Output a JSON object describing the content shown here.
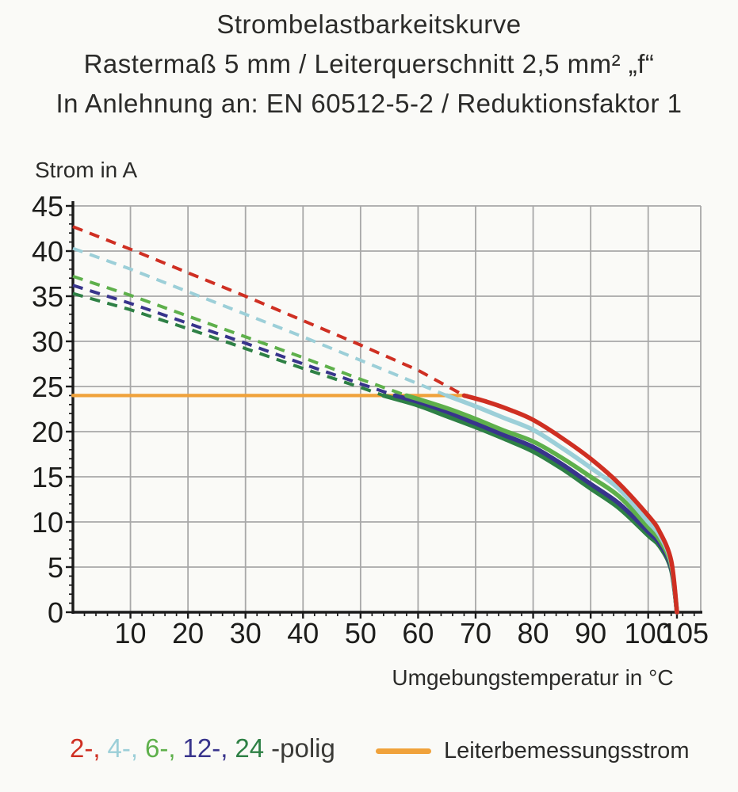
{
  "header": {
    "line1": "Strombelastbarkeitskurve",
    "line2": "Rastermaß 5 mm / Leiterquerschnitt 2,5 mm² „f“",
    "line3": "In Anlehnung an: EN 60512-5-2 / Reduktionsfaktor 1"
  },
  "legend": {
    "pole_tokens": [
      {
        "label": "2-,",
        "color": "#cf2f22"
      },
      {
        "label": "4-,",
        "color": "#9ccfd8"
      },
      {
        "label": "6-,",
        "color": "#5eb04b"
      },
      {
        "label": "12-,",
        "color": "#38348c"
      },
      {
        "label": "24",
        "color": "#2e8045"
      }
    ],
    "suffix": "-polig",
    "suffix_color": "#3a3a37",
    "rated_label": "Leiterbemessungsstrom",
    "rated_color": "#f0a23b"
  },
  "chart_data": {
    "type": "line",
    "title": "Strombelastbarkeitskurve",
    "subtitle": "Rastermaß 5 mm / Leiterquerschnitt 2,5 mm² „f“ / In Anlehnung an: EN 60512-5-2 / Reduktionsfaktor 1",
    "xlabel": "Umgebungstemperatur in °C",
    "ylabel": "Strom in A",
    "xlim": [
      0,
      109
    ],
    "ylim": [
      0,
      45
    ],
    "x_major_ticks": [
      10,
      20,
      30,
      40,
      50,
      60,
      70,
      80,
      90,
      100,
      105
    ],
    "y_major_ticks": [
      0,
      5,
      10,
      15,
      20,
      25,
      30,
      35,
      40,
      45
    ],
    "x_minor_step": 2,
    "y_minor_step": 1,
    "grid": {
      "x_step": 10,
      "y_step": 5,
      "color": "#a8a8a8",
      "frame_right": true,
      "frame_top": true
    },
    "legend_position": "bottom",
    "rated_current_line": {
      "label": "Leiterbemessungsstrom",
      "current_a": 24,
      "x_start": 0,
      "x_end": 68.5,
      "color": "#f0a23b"
    },
    "series": [
      {
        "name": "2-polig",
        "color": "#cf2f22",
        "transition_c": 68,
        "dashed_points": [
          [
            0,
            42.7
          ],
          [
            10,
            40.2
          ],
          [
            20,
            37.6
          ],
          [
            30,
            35.0
          ],
          [
            40,
            32.3
          ],
          [
            50,
            29.6
          ],
          [
            60,
            26.8
          ],
          [
            68,
            24
          ]
        ],
        "solid_points": [
          [
            68,
            24
          ],
          [
            72,
            23.3
          ],
          [
            76,
            22.4
          ],
          [
            80,
            21.3
          ],
          [
            85,
            19.3
          ],
          [
            90,
            17.0
          ],
          [
            95,
            14.2
          ],
          [
            100,
            10.7
          ],
          [
            102,
            8.9
          ],
          [
            104,
            5.7
          ],
          [
            105,
            0
          ]
        ]
      },
      {
        "name": "4-polig",
        "color": "#9ccfd8",
        "transition_c": 65,
        "dashed_points": [
          [
            0,
            40.3
          ],
          [
            10,
            38.0
          ],
          [
            20,
            35.5
          ],
          [
            30,
            33.0
          ],
          [
            40,
            30.5
          ],
          [
            50,
            27.9
          ],
          [
            60,
            25.3
          ],
          [
            65,
            24
          ]
        ],
        "solid_points": [
          [
            65,
            24
          ],
          [
            70,
            22.8
          ],
          [
            75,
            21.5
          ],
          [
            80,
            20.2
          ],
          [
            85,
            18.2
          ],
          [
            90,
            16.0
          ],
          [
            95,
            13.6
          ],
          [
            100,
            10.0
          ],
          [
            102,
            8.5
          ],
          [
            104,
            5.5
          ],
          [
            105,
            0
          ]
        ]
      },
      {
        "name": "6-polig",
        "color": "#5eb04b",
        "transition_c": 58,
        "dashed_points": [
          [
            0,
            37.2
          ],
          [
            10,
            35.1
          ],
          [
            20,
            32.8
          ],
          [
            30,
            30.5
          ],
          [
            40,
            28.2
          ],
          [
            50,
            25.8
          ],
          [
            58,
            24
          ]
        ],
        "solid_points": [
          [
            58,
            24
          ],
          [
            65,
            22.6
          ],
          [
            70,
            21.4
          ],
          [
            75,
            20.1
          ],
          [
            80,
            18.9
          ],
          [
            85,
            17.1
          ],
          [
            90,
            15.0
          ],
          [
            95,
            12.8
          ],
          [
            100,
            9.4
          ],
          [
            102,
            8.0
          ],
          [
            104,
            5.2
          ],
          [
            105,
            0
          ]
        ]
      },
      {
        "name": "12-polig",
        "color": "#38348c",
        "transition_c": 56,
        "dashed_points": [
          [
            0,
            36.2
          ],
          [
            10,
            34.2
          ],
          [
            20,
            32.0
          ],
          [
            30,
            29.8
          ],
          [
            40,
            27.5
          ],
          [
            50,
            25.3
          ],
          [
            56,
            24
          ]
        ],
        "solid_points": [
          [
            56,
            24
          ],
          [
            60,
            23.3
          ],
          [
            65,
            22.2
          ],
          [
            70,
            20.9
          ],
          [
            75,
            19.6
          ],
          [
            80,
            18.3
          ],
          [
            85,
            16.4
          ],
          [
            90,
            14.2
          ],
          [
            95,
            12.0
          ],
          [
            100,
            8.9
          ],
          [
            102,
            7.6
          ],
          [
            104,
            4.9
          ],
          [
            105,
            0
          ]
        ]
      },
      {
        "name": "24-polig",
        "color": "#2e8045",
        "transition_c": 54,
        "dashed_points": [
          [
            0,
            35.3
          ],
          [
            10,
            33.5
          ],
          [
            20,
            31.4
          ],
          [
            30,
            29.2
          ],
          [
            40,
            27.0
          ],
          [
            50,
            24.9
          ],
          [
            54,
            24
          ]
        ],
        "solid_points": [
          [
            54,
            24
          ],
          [
            60,
            22.9
          ],
          [
            65,
            21.7
          ],
          [
            70,
            20.5
          ],
          [
            75,
            19.2
          ],
          [
            80,
            17.8
          ],
          [
            85,
            15.9
          ],
          [
            90,
            13.7
          ],
          [
            95,
            11.5
          ],
          [
            100,
            8.5
          ],
          [
            102,
            7.3
          ],
          [
            104,
            4.7
          ],
          [
            105,
            0
          ]
        ]
      }
    ]
  }
}
